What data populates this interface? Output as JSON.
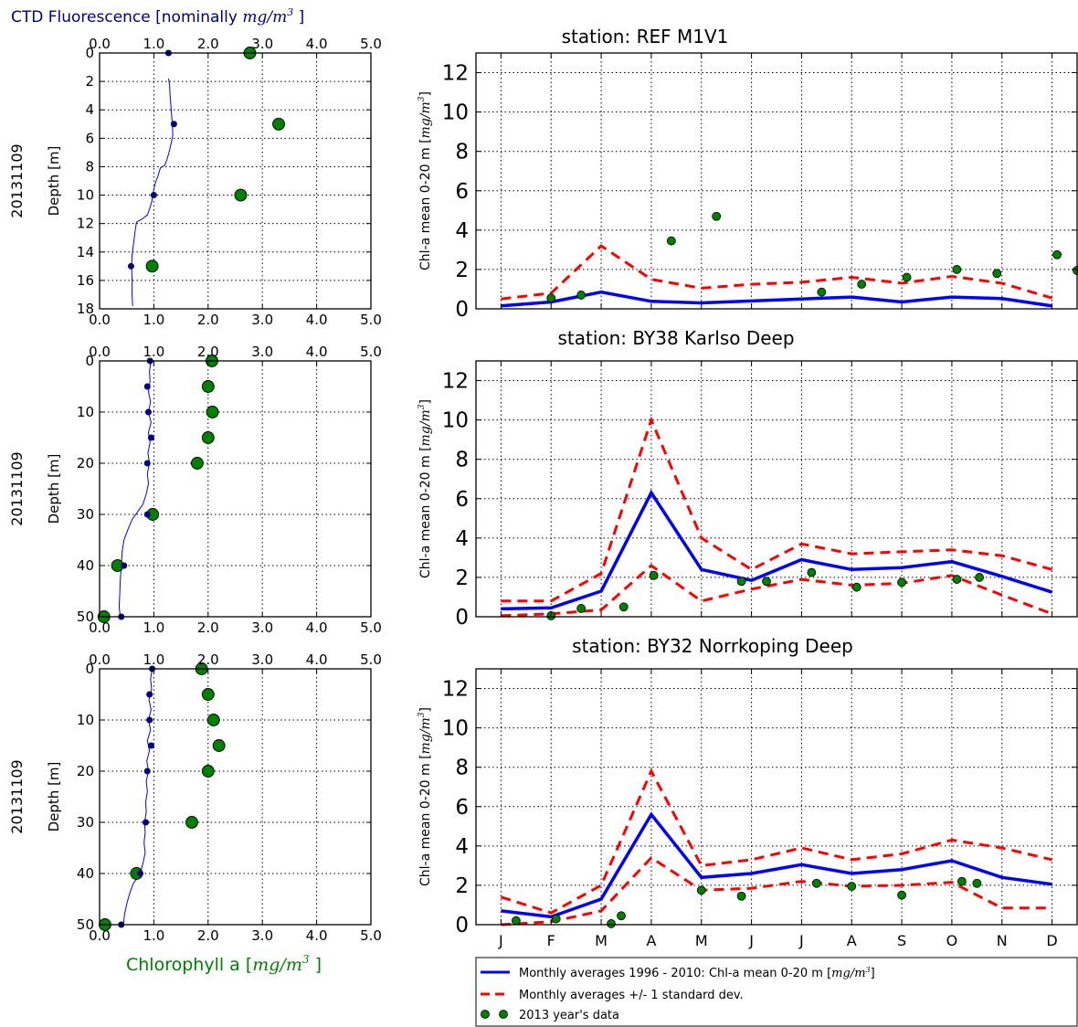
{
  "chart_data": [
    {
      "type": "scatter",
      "panel": "profile",
      "date_label": "20131109",
      "top_axis_title": "CTD Fluorescence [nominally ",
      "top_axis_unit": "mg/m",
      "top_axis_unit_exp": "3",
      "top_axis_close": " ]",
      "ylabel": "Depth [m]",
      "xlim": [
        0,
        5
      ],
      "ylim": [
        18,
        0
      ],
      "y_ticks": [
        0,
        2,
        4,
        6,
        8,
        10,
        12,
        14,
        16,
        18
      ],
      "x_tick_labels": [
        "0.0",
        "1.0",
        "2.0",
        "3.0",
        "4.0",
        "5.0"
      ],
      "grid": true,
      "ctd_fluorescence_profile": [
        [
          1.27,
          1.8
        ],
        [
          1.29,
          2.2
        ],
        [
          1.3,
          3
        ],
        [
          1.32,
          4
        ],
        [
          1.34,
          5
        ],
        [
          1.35,
          5.8
        ],
        [
          1.31,
          6.5
        ],
        [
          1.28,
          7.0
        ],
        [
          1.24,
          7.5
        ],
        [
          1.2,
          7.9
        ],
        [
          1.12,
          8.1
        ],
        [
          1.08,
          8.6
        ],
        [
          1.03,
          9.1
        ],
        [
          1.0,
          9.6
        ],
        [
          0.98,
          10.0
        ],
        [
          0.96,
          10.5
        ],
        [
          0.92,
          11.0
        ],
        [
          0.88,
          11.4
        ],
        [
          0.78,
          11.7
        ],
        [
          0.68,
          11.9
        ],
        [
          0.66,
          12.4
        ],
        [
          0.64,
          13.0
        ],
        [
          0.62,
          13.6
        ],
        [
          0.6,
          14.2
        ],
        [
          0.59,
          15.0
        ],
        [
          0.6,
          16.0
        ],
        [
          0.6,
          17.0
        ],
        [
          0.61,
          17.8
        ]
      ],
      "ctd_fluorescence_points": [
        [
          1.27,
          0
        ],
        [
          1.37,
          5
        ],
        [
          1.0,
          10
        ],
        [
          0.58,
          15
        ]
      ],
      "chlorophyll_points": [
        [
          2.77,
          0
        ],
        [
          3.3,
          5
        ],
        [
          2.6,
          10
        ],
        [
          0.97,
          15
        ]
      ]
    },
    {
      "type": "scatter",
      "panel": "profile",
      "date_label": "20131109",
      "ylabel": "Depth [m]",
      "xlim": [
        0,
        5
      ],
      "ylim": [
        50,
        0
      ],
      "y_ticks": [
        0,
        10,
        20,
        30,
        40,
        50
      ],
      "x_tick_labels": [
        "0.0",
        "1.0",
        "2.0",
        "3.0",
        "4.0",
        "5.0"
      ],
      "grid": true,
      "ctd_fluorescence_profile": [
        [
          0.95,
          0
        ],
        [
          0.92,
          2
        ],
        [
          0.93,
          4
        ],
        [
          0.9,
          6
        ],
        [
          0.94,
          8
        ],
        [
          0.9,
          10
        ],
        [
          0.95,
          12
        ],
        [
          0.9,
          14
        ],
        [
          0.93,
          16
        ],
        [
          0.89,
          18
        ],
        [
          0.92,
          20
        ],
        [
          0.88,
          22
        ],
        [
          0.9,
          24
        ],
        [
          0.86,
          26
        ],
        [
          0.8,
          28
        ],
        [
          0.7,
          29.5
        ],
        [
          0.6,
          31
        ],
        [
          0.52,
          33
        ],
        [
          0.45,
          35
        ],
        [
          0.42,
          37
        ],
        [
          0.4,
          40
        ],
        [
          0.38,
          43
        ],
        [
          0.37,
          46
        ],
        [
          0.36,
          48
        ],
        [
          0.38,
          50
        ]
      ],
      "ctd_fluorescence_points": [
        [
          0.93,
          0
        ],
        [
          0.88,
          5
        ],
        [
          0.9,
          10
        ],
        [
          0.95,
          15
        ],
        [
          0.88,
          20
        ],
        [
          0.88,
          30
        ],
        [
          0.45,
          40
        ],
        [
          0.4,
          50
        ]
      ],
      "chlorophyll_points": [
        [
          2.07,
          0
        ],
        [
          2.0,
          5
        ],
        [
          2.08,
          10
        ],
        [
          2.0,
          15
        ],
        [
          1.8,
          20
        ],
        [
          0.98,
          30
        ],
        [
          0.33,
          40
        ],
        [
          0.08,
          50
        ]
      ]
    },
    {
      "type": "scatter",
      "panel": "profile",
      "date_label": "20131109",
      "ylabel": "Depth [m]",
      "xlim": [
        0,
        5
      ],
      "ylim": [
        50,
        0
      ],
      "y_ticks": [
        0,
        10,
        20,
        30,
        40,
        50
      ],
      "x_tick_labels": [
        "0.0",
        "1.0",
        "2.0",
        "3.0",
        "4.0",
        "5.0"
      ],
      "grid": true,
      "bottom_axis_title": "Chlorophyll a [",
      "bottom_axis_unit": "mg/m",
      "bottom_axis_unit_exp": "3",
      "bottom_axis_close": " ]",
      "ctd_fluorescence_profile": [
        [
          0.97,
          0
        ],
        [
          0.94,
          2
        ],
        [
          0.96,
          4
        ],
        [
          0.91,
          6
        ],
        [
          0.95,
          8
        ],
        [
          0.9,
          10
        ],
        [
          0.94,
          12
        ],
        [
          0.88,
          14
        ],
        [
          0.92,
          16
        ],
        [
          0.87,
          18
        ],
        [
          0.9,
          20
        ],
        [
          0.86,
          22
        ],
        [
          0.88,
          24
        ],
        [
          0.85,
          26
        ],
        [
          0.86,
          28
        ],
        [
          0.83,
          30
        ],
        [
          0.84,
          32
        ],
        [
          0.82,
          34
        ],
        [
          0.84,
          36
        ],
        [
          0.8,
          38
        ],
        [
          0.75,
          40
        ],
        [
          0.62,
          42
        ],
        [
          0.55,
          44
        ],
        [
          0.5,
          46
        ],
        [
          0.46,
          48
        ],
        [
          0.44,
          50
        ]
      ],
      "ctd_fluorescence_points": [
        [
          0.97,
          0
        ],
        [
          0.92,
          5
        ],
        [
          0.92,
          10
        ],
        [
          0.95,
          15
        ],
        [
          0.88,
          20
        ],
        [
          0.85,
          30
        ],
        [
          0.75,
          40
        ],
        [
          0.4,
          50
        ]
      ],
      "chlorophyll_points": [
        [
          1.88,
          0
        ],
        [
          2.0,
          5
        ],
        [
          2.1,
          10
        ],
        [
          2.2,
          15
        ],
        [
          2.0,
          20
        ],
        [
          1.7,
          30
        ],
        [
          0.68,
          40
        ],
        [
          0.1,
          50
        ]
      ]
    },
    {
      "type": "line",
      "panel": "timeseries",
      "title": "station: REF M1V1",
      "ylabel_text": "Chl-a mean 0-20 m [",
      "ylabel_unit": "mg/m",
      "ylabel_unit_exp": "3",
      "ylabel_close": "]",
      "ylim": [
        0,
        13
      ],
      "y_ticks": [
        0,
        2,
        4,
        6,
        8,
        10,
        12
      ],
      "xlim": [
        0.5,
        12.5
      ],
      "grid": true,
      "mean": [
        [
          1,
          0.15
        ],
        [
          2,
          0.35
        ],
        [
          3,
          0.85
        ],
        [
          4,
          0.38
        ],
        [
          5,
          0.3
        ],
        [
          6,
          0.4
        ],
        [
          7,
          0.5
        ],
        [
          8,
          0.6
        ],
        [
          9,
          0.35
        ],
        [
          10,
          0.6
        ],
        [
          11,
          0.52
        ],
        [
          12,
          0.15
        ]
      ],
      "upper": [
        [
          1,
          0.5
        ],
        [
          2,
          0.8
        ],
        [
          3,
          3.2
        ],
        [
          4,
          1.5
        ],
        [
          5,
          1.05
        ],
        [
          6,
          1.25
        ],
        [
          7,
          1.35
        ],
        [
          8,
          1.6
        ],
        [
          9,
          1.3
        ],
        [
          10,
          1.65
        ],
        [
          11,
          1.3
        ],
        [
          12,
          0.55
        ]
      ],
      "lower": [],
      "obs_2013": [
        [
          2.0,
          0.55
        ],
        [
          2.6,
          0.7
        ],
        [
          4.4,
          3.45
        ],
        [
          5.3,
          4.7
        ],
        [
          7.4,
          0.85
        ],
        [
          8.2,
          1.25
        ],
        [
          9.1,
          1.6
        ],
        [
          10.1,
          2.0
        ],
        [
          10.9,
          1.8
        ],
        [
          12.1,
          2.75
        ],
        [
          12.5,
          1.95
        ]
      ]
    },
    {
      "type": "line",
      "panel": "timeseries",
      "title": "station: BY38 Karlso Deep",
      "ylabel_text": "Chl-a mean 0-20 m [",
      "ylabel_unit": "mg/m",
      "ylabel_unit_exp": "3",
      "ylabel_close": "]",
      "ylim": [
        0,
        13
      ],
      "y_ticks": [
        0,
        2,
        4,
        6,
        8,
        10,
        12
      ],
      "xlim": [
        0.5,
        12.5
      ],
      "grid": true,
      "mean": [
        [
          1,
          0.4
        ],
        [
          2,
          0.45
        ],
        [
          3,
          1.3
        ],
        [
          4,
          6.3
        ],
        [
          5,
          2.4
        ],
        [
          6,
          1.85
        ],
        [
          7,
          2.9
        ],
        [
          8,
          2.4
        ],
        [
          9,
          2.5
        ],
        [
          10,
          2.8
        ],
        [
          11,
          2.05
        ],
        [
          12,
          1.25
        ]
      ],
      "upper": [
        [
          1,
          0.8
        ],
        [
          2,
          0.8
        ],
        [
          3,
          2.2
        ],
        [
          4,
          10.0
        ],
        [
          5,
          4.0
        ],
        [
          6,
          2.4
        ],
        [
          7,
          3.7
        ],
        [
          8,
          3.2
        ],
        [
          9,
          3.3
        ],
        [
          10,
          3.4
        ],
        [
          11,
          3.1
        ],
        [
          12,
          2.4
        ]
      ],
      "lower": [
        [
          1,
          0.05
        ],
        [
          2,
          0.15
        ],
        [
          3,
          0.35
        ],
        [
          4,
          2.6
        ],
        [
          5,
          0.8
        ],
        [
          6,
          1.4
        ],
        [
          7,
          1.9
        ],
        [
          8,
          1.6
        ],
        [
          9,
          1.7
        ],
        [
          10,
          2.1
        ],
        [
          11,
          1.1
        ],
        [
          12,
          0.15
        ]
      ],
      "obs_2013": [
        [
          2.0,
          0.05
        ],
        [
          2.6,
          0.42
        ],
        [
          3.45,
          0.5
        ],
        [
          4.05,
          2.1
        ],
        [
          5.8,
          1.8
        ],
        [
          6.3,
          1.8
        ],
        [
          7.2,
          2.25
        ],
        [
          8.1,
          1.5
        ],
        [
          9.0,
          1.75
        ],
        [
          10.1,
          1.9
        ],
        [
          10.55,
          2.0
        ]
      ]
    },
    {
      "type": "line",
      "panel": "timeseries",
      "title": "station: BY32 Norrkoping Deep",
      "ylabel_text": "Chl-a mean 0-20 m [",
      "ylabel_unit": "mg/m",
      "ylabel_unit_exp": "3",
      "ylabel_close": "]",
      "ylim": [
        0,
        13
      ],
      "y_ticks": [
        0,
        2,
        4,
        6,
        8,
        10,
        12
      ],
      "xlim": [
        0.5,
        12.5
      ],
      "grid": true,
      "x_tick_labels": [
        "J",
        "F",
        "M",
        "A",
        "M",
        "J",
        "J",
        "A",
        "S",
        "O",
        "N",
        "D"
      ],
      "mean": [
        [
          1,
          0.7
        ],
        [
          2,
          0.4
        ],
        [
          3,
          1.3
        ],
        [
          4,
          5.6
        ],
        [
          5,
          2.4
        ],
        [
          6,
          2.6
        ],
        [
          7,
          3.05
        ],
        [
          8,
          2.6
        ],
        [
          9,
          2.8
        ],
        [
          10,
          3.25
        ],
        [
          11,
          2.4
        ],
        [
          12,
          2.05
        ]
      ],
      "upper": [
        [
          1,
          1.4
        ],
        [
          2,
          0.6
        ],
        [
          3,
          2.0
        ],
        [
          4,
          7.8
        ],
        [
          5,
          3.0
        ],
        [
          6,
          3.3
        ],
        [
          7,
          3.9
        ],
        [
          8,
          3.3
        ],
        [
          9,
          3.6
        ],
        [
          10,
          4.3
        ],
        [
          11,
          3.9
        ],
        [
          12,
          3.3
        ]
      ],
      "lower": [
        [
          1,
          0.0
        ],
        [
          2,
          0.15
        ],
        [
          3,
          0.7
        ],
        [
          4,
          3.4
        ],
        [
          5,
          1.75
        ],
        [
          6,
          1.85
        ],
        [
          7,
          2.2
        ],
        [
          8,
          1.95
        ],
        [
          9,
          2.0
        ],
        [
          10,
          2.15
        ],
        [
          11,
          0.85
        ],
        [
          12,
          0.85
        ]
      ],
      "obs_2013": [
        [
          1.3,
          0.2
        ],
        [
          2.1,
          0.3
        ],
        [
          3.2,
          0.05
        ],
        [
          3.4,
          0.45
        ],
        [
          5.0,
          1.75
        ],
        [
          5.8,
          1.45
        ],
        [
          7.3,
          2.1
        ],
        [
          8.0,
          1.95
        ],
        [
          9.0,
          1.5
        ],
        [
          10.2,
          2.2
        ],
        [
          10.5,
          2.1
        ]
      ]
    }
  ],
  "legend": {
    "mean_label": "Monthly averages 1996 - 2010: Chl-a mean 0-20 m [",
    "mean_unit": "mg/m",
    "mean_unit_exp": "3",
    "mean_close": "]",
    "std_label": "Monthly averages +/- 1 standard dev.",
    "obs_label": "2013 year's data"
  },
  "colors": {
    "mean_line": "#0000ff",
    "std_line": "#ff0000",
    "observations": "#008000",
    "ctd": "#0000ff",
    "ctd_points": "#000080",
    "grid": "#000000",
    "top_axis_text": "#000080",
    "bottom_axis_text": "#008000"
  }
}
